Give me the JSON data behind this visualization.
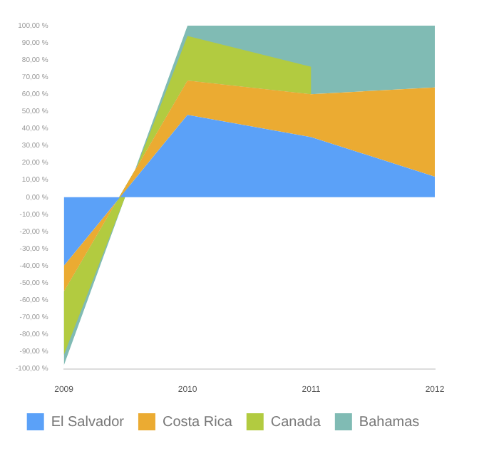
{
  "chart_data": {
    "type": "area",
    "stacked": true,
    "categories": [
      "2009",
      "2010",
      "2011",
      "2012"
    ],
    "series": [
      {
        "name": "El Salvador",
        "color": "#5ba1f8",
        "values": [
          -40,
          48,
          35,
          12
        ]
      },
      {
        "name": "Costa Rica",
        "color": "#ebab32",
        "values": [
          -15,
          20,
          25,
          52
        ]
      },
      {
        "name": "Canada",
        "color": "#b2cb40",
        "values": [
          -37,
          26,
          16,
          null
        ]
      },
      {
        "name": "Bahamas",
        "color": "#80bbb4",
        "values": [
          -6,
          6,
          24,
          36
        ]
      }
    ],
    "ylim": [
      -100,
      100
    ],
    "yticks": [
      {
        "value": -100,
        "label": "-100,00 %"
      },
      {
        "value": -90,
        "label": "-90,00 %"
      },
      {
        "value": -80,
        "label": "-80,00 %"
      },
      {
        "value": -70,
        "label": "-70,00 %"
      },
      {
        "value": -60,
        "label": "-60,00 %"
      },
      {
        "value": -50,
        "label": "-50,00 %"
      },
      {
        "value": -40,
        "label": "-40,00 %"
      },
      {
        "value": -30,
        "label": "-30,00 %"
      },
      {
        "value": -20,
        "label": "-20,00 %"
      },
      {
        "value": -10,
        "label": "-10,00 %"
      },
      {
        "value": 0,
        "label": "0,00 %"
      },
      {
        "value": 10,
        "label": "10,00 %"
      },
      {
        "value": 20,
        "label": "20,00 %"
      },
      {
        "value": 30,
        "label": "30,00 %"
      },
      {
        "value": 40,
        "label": "40,00 %"
      },
      {
        "value": 50,
        "label": "50,00 %"
      },
      {
        "value": 60,
        "label": "60,00 %"
      },
      {
        "value": 70,
        "label": "70,00 %"
      },
      {
        "value": 80,
        "label": "80,00 %"
      },
      {
        "value": 90,
        "label": "90,00 %"
      },
      {
        "value": 100,
        "label": "100,00 %"
      }
    ],
    "legend": "bottom"
  }
}
